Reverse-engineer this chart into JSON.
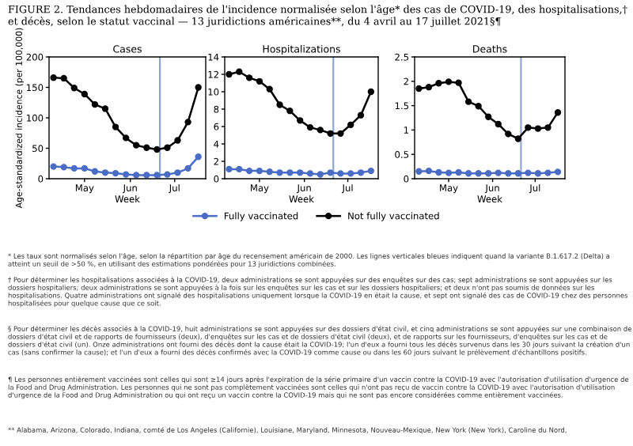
{
  "chart_data": [
    {
      "type": "line",
      "title": "Cases",
      "xlabel": "Week",
      "ylabel": "Age-standardized incidence (per 100,000)",
      "x": [
        "2021-04-10",
        "2021-04-17",
        "2021-04-24",
        "2021-05-01",
        "2021-05-08",
        "2021-05-15",
        "2021-05-22",
        "2021-05-29",
        "2021-06-05",
        "2021-06-12",
        "2021-06-19",
        "2021-06-26",
        "2021-07-03",
        "2021-07-10",
        "2021-07-17"
      ],
      "series": [
        {
          "name": "Fully vaccinated",
          "color": "#4a6cc4",
          "values": [
            20,
            19,
            17,
            17,
            12,
            10,
            9,
            7,
            6,
            6,
            6,
            7,
            10,
            17,
            36
          ]
        },
        {
          "name": "Not fully vaccinated",
          "color": "#000000",
          "values": [
            166,
            165,
            149,
            139,
            122,
            115,
            85,
            67,
            55,
            51,
            48,
            51,
            63,
            93,
            150
          ]
        }
      ],
      "xlim": [
        "2021-04-07",
        "2021-07-22"
      ],
      "xticks": [
        {
          "value": "2021-05-01",
          "label": "May"
        },
        {
          "value": "2021-06-01",
          "label": "Jun"
        },
        {
          "value": "2021-07-01",
          "label": "Jul"
        }
      ],
      "ylim": [
        0,
        200
      ],
      "yticks": [
        0,
        50,
        100,
        150,
        200
      ],
      "marker": "circle",
      "line_style": "solid",
      "legend": "bottom",
      "ref_lines": [
        {
          "axis": "x",
          "value": "2021-06-21",
          "label": null,
          "color": "#8fa6d0"
        }
      ]
    },
    {
      "type": "line",
      "title": "Hospitalizations",
      "xlabel": "Week",
      "x": [
        "2021-04-10",
        "2021-04-17",
        "2021-04-24",
        "2021-05-01",
        "2021-05-08",
        "2021-05-15",
        "2021-05-22",
        "2021-05-29",
        "2021-06-05",
        "2021-06-12",
        "2021-06-19",
        "2021-06-26",
        "2021-07-03",
        "2021-07-10",
        "2021-07-17"
      ],
      "series": [
        {
          "color": "#4a6cc4",
          "values": [
            1.1,
            1.1,
            0.9,
            0.9,
            0.8,
            0.7,
            0.7,
            0.7,
            0.6,
            0.5,
            0.7,
            0.6,
            0.6,
            0.7,
            0.9
          ]
        },
        {
          "color": "#000000",
          "values": [
            12.0,
            12.3,
            11.6,
            11.2,
            10.3,
            8.5,
            7.8,
            6.7,
            5.9,
            5.6,
            5.2,
            5.2,
            6.2,
            7.3,
            10.0
          ]
        }
      ],
      "xlim": [
        "2021-04-07",
        "2021-07-22"
      ],
      "xticks": [
        {
          "value": "2021-05-01",
          "label": "May"
        },
        {
          "value": "2021-06-01",
          "label": "Jun"
        },
        {
          "value": "2021-07-01",
          "label": "Jul"
        }
      ],
      "ylim": [
        0,
        14
      ],
      "yticks": [
        0,
        2,
        4,
        6,
        8,
        10,
        12,
        14
      ],
      "marker": "circle",
      "line_style": "solid",
      "ref_lines": [
        {
          "axis": "x",
          "value": "2021-06-21",
          "label": null,
          "color": "#8fa6d0"
        }
      ]
    },
    {
      "type": "line",
      "title": "Deaths",
      "xlabel": "Week",
      "x": [
        "2021-04-10",
        "2021-04-17",
        "2021-04-24",
        "2021-05-01",
        "2021-05-08",
        "2021-05-15",
        "2021-05-22",
        "2021-05-29",
        "2021-06-05",
        "2021-06-12",
        "2021-06-19",
        "2021-06-26",
        "2021-07-03",
        "2021-07-10",
        "2021-07-17"
      ],
      "series": [
        {
          "color": "#4a6cc4",
          "values": [
            0.15,
            0.16,
            0.13,
            0.12,
            0.13,
            0.11,
            0.11,
            0.11,
            0.12,
            0.11,
            0.11,
            0.12,
            0.11,
            0.12,
            0.14
          ]
        },
        {
          "color": "#000000",
          "values": [
            1.85,
            1.88,
            1.96,
            1.99,
            1.97,
            1.58,
            1.49,
            1.27,
            1.12,
            0.92,
            0.82,
            1.05,
            1.03,
            1.05,
            1.36
          ]
        }
      ],
      "xlim": [
        "2021-04-07",
        "2021-07-22"
      ],
      "xticks": [
        {
          "value": "2021-05-01",
          "label": "May"
        },
        {
          "value": "2021-06-01",
          "label": "Jun"
        },
        {
          "value": "2021-07-01",
          "label": "Jul"
        }
      ],
      "ylim": [
        0,
        2.5
      ],
      "yticks": [
        0,
        0.5,
        1,
        1.5,
        2,
        2.5
      ],
      "marker": "circle",
      "line_style": "solid",
      "ref_lines": [
        {
          "axis": "x",
          "value": "2021-06-21",
          "label": null,
          "color": "#8fa6d0"
        }
      ]
    },
    {
      "type": "other",
      "title": "FIGURE 2. Tendances hebdomadaires de l'incidence normalisée selon l'âge* des cas de COVID-19, des hospitalisations,† et décès, selon le statut vaccinal — 13 juridictions américaines**, du 4 avril au 17 juillet 2021§¶",
      "annotations": [
        "* Les taux sont normalisés selon l'âge, selon la répartition par âge du recensement américain de 2000. Les lignes verticales bleues indiquent quand la variante B.1.617.2 (Delta) a atteint un seuil de >50 %, en utilisant des estimations pondérées pour 13 juridictions combinées.",
        "† Pour déterminer les hospitalisations associées à la COVID-19, deux administrations se sont appuyées sur des enquêtes sur des cas; sept administrations se sont appuyées sur les dossiers hospitaliers; deux administrations se sont appuyées à la fois sur les enquêtes sur les cas et sur les dossiers hospitaliers; et deux n'ont pas soumis de données sur les hospitalisations. Quatre administrations ont signalé des hospitalisations uniquement lorsque la COVID-19 en était la cause, et sept ont signalé des cas de COVID-19 chez des personnes hospitalisées pour quelque cause que ce soit.",
        "§ Pour déterminer les décès associés à la COVID-19, huit administrations se sont appuyées sur des dossiers d'état civil, et cinq administrations se sont appuyées sur une combinaison de dossiers d'état civil et de rapports de fournisseurs (deux), d'enquêtes sur les cas et de dossiers d'état civil (deux), et de rapports sur les fournisseurs, d'enquêtes sur les cas et de dossiers d'état civil (un). Onze administrations ont fourni des décès dont la cause était la COVID-19; l'un d'eux a fourni tous les décès survenus dans les 30 jours suivant la création d'un cas (sans confirmer la cause); et l'un d'eux a fourni des décès confirmés avec la COVID-19 comme cause ou dans les 60 jours suivant le prélèvement d'échantillons positifs.",
        "¶ Les personnes entièrement vaccinées sont celles qui sont ≥14 jours après l'expiration de la série primaire d'un vaccin contre la COVID-19 avec l'autorisation d'utilisation d'urgence de la Food and Drug Administration. Les personnes qui ne sont pas complètement vaccinées sont celles qui n'ont pas reçu de vaccin contre la COVID-19 avec l'autorisation d'utilisation d'urgence de la Food and Drug Administration ou qui ont reçu un vaccin contre la COVID-19 mais qui ne sont pas encore considérées comme entièrement vaccinées.",
        "** Alabama, Arizona, Colorado, Indiana, comté de Los Angeles (Californie), Louisiane, Maryland, Minnesota, Nouveau-Mexique, New York (New York), Caroline du Nord,"
      ]
    }
  ]
}
